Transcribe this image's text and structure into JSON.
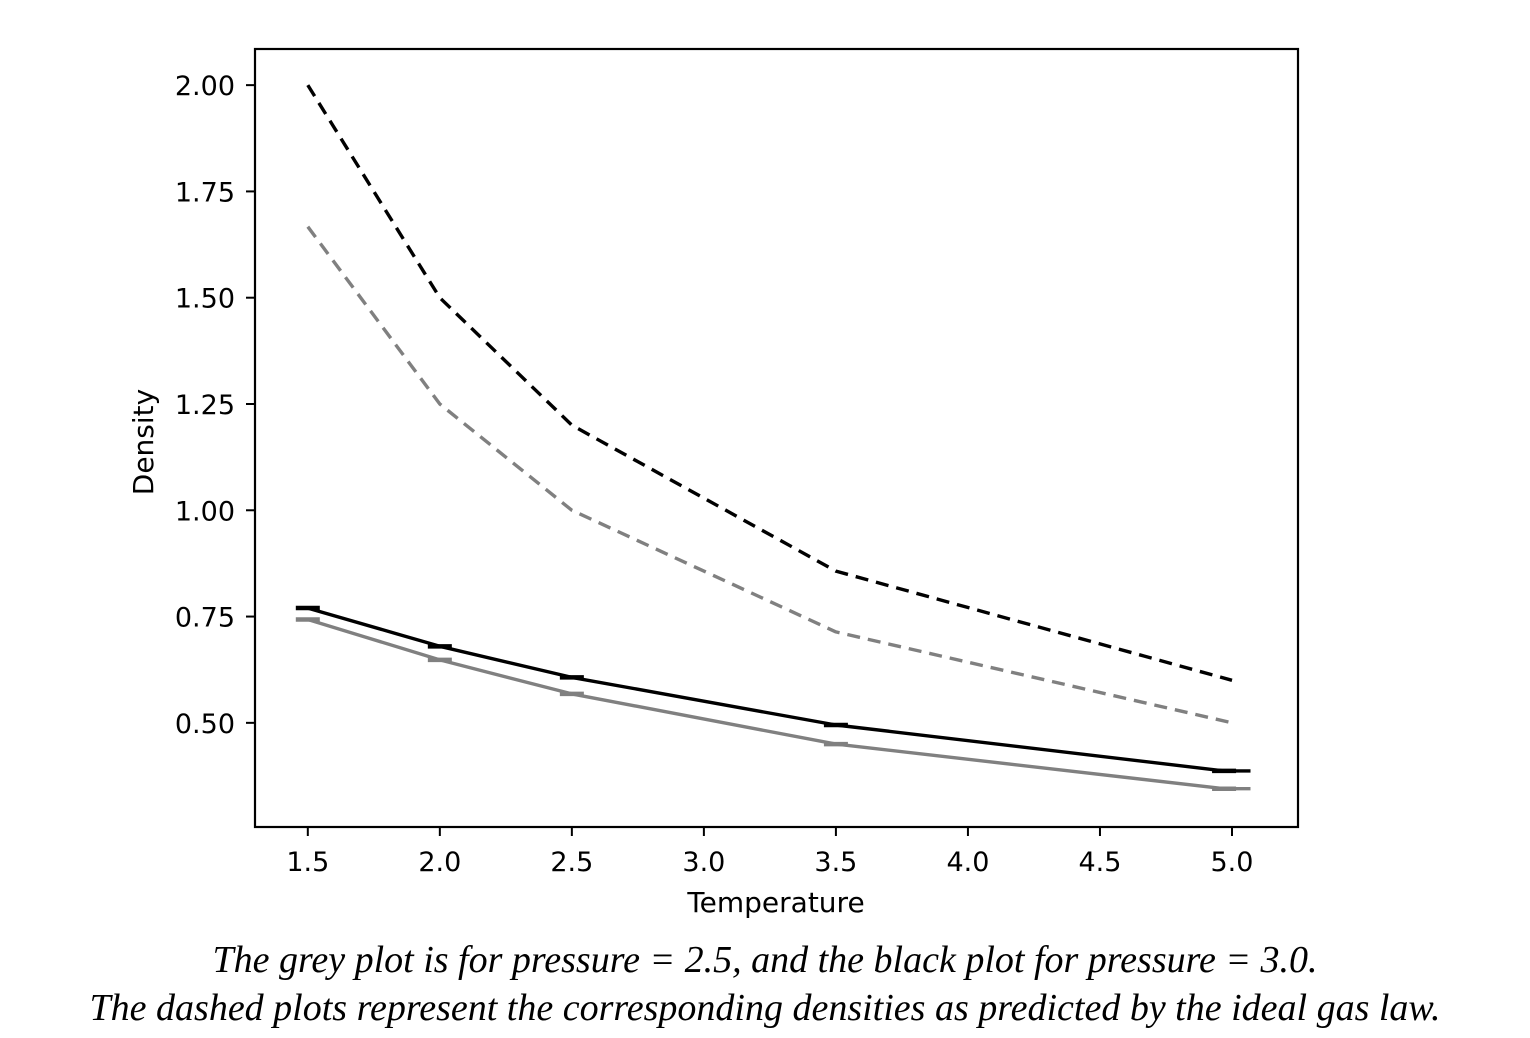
{
  "chart_data": {
    "type": "line",
    "xlabel": "Temperature",
    "ylabel": "Density",
    "xlim": [
      1.3,
      5.25
    ],
    "ylim": [
      0.255,
      2.085
    ],
    "xticks": [
      1.5,
      2.0,
      2.5,
      3.0,
      3.5,
      4.0,
      4.5,
      5.0
    ],
    "xtick_labels": [
      "1.5",
      "2.0",
      "2.5",
      "3.0",
      "3.5",
      "4.0",
      "4.5",
      "5.0"
    ],
    "yticks": [
      0.5,
      0.75,
      1.0,
      1.25,
      1.5,
      1.75,
      2.0
    ],
    "ytick_labels": [
      "0.50",
      "0.75",
      "1.00",
      "1.25",
      "1.50",
      "1.75",
      "2.00"
    ],
    "grid": false,
    "series": [
      {
        "name": "pressure = 3.0 (ideal gas law)",
        "color": "#000000",
        "style": "dashed",
        "x": [
          1.5,
          2.0,
          2.5,
          3.5,
          5.0
        ],
        "y": [
          2.0,
          1.5,
          1.2,
          0.857,
          0.6
        ]
      },
      {
        "name": "pressure = 2.5 (ideal gas law)",
        "color": "#808080",
        "style": "dashed",
        "x": [
          1.5,
          2.0,
          2.5,
          3.5,
          5.0
        ],
        "y": [
          1.667,
          1.25,
          1.0,
          0.714,
          0.5
        ]
      },
      {
        "name": "pressure = 3.0",
        "color": "#000000",
        "style": "solid",
        "x": [
          1.5,
          2.0,
          2.5,
          3.5,
          4.97,
          5.07
        ],
        "y": [
          0.77,
          0.68,
          0.607,
          0.495,
          0.387,
          0.387
        ],
        "error_bar_x": [
          1.5,
          2.0,
          2.5,
          3.5,
          4.97
        ]
      },
      {
        "name": "pressure = 2.5",
        "color": "#808080",
        "style": "solid",
        "x": [
          1.5,
          2.0,
          2.5,
          3.5,
          4.97,
          5.07
        ],
        "y": [
          0.743,
          0.648,
          0.568,
          0.45,
          0.345,
          0.345
        ],
        "error_bar_x": [
          1.5,
          2.0,
          2.5,
          3.5,
          4.97
        ]
      }
    ]
  },
  "caption": {
    "line1": "The grey plot is for pressure = 2.5, and the black plot for pressure = 3.0.",
    "line2": "The dashed plots represent the corresponding densities as predicted by the ideal gas law."
  }
}
